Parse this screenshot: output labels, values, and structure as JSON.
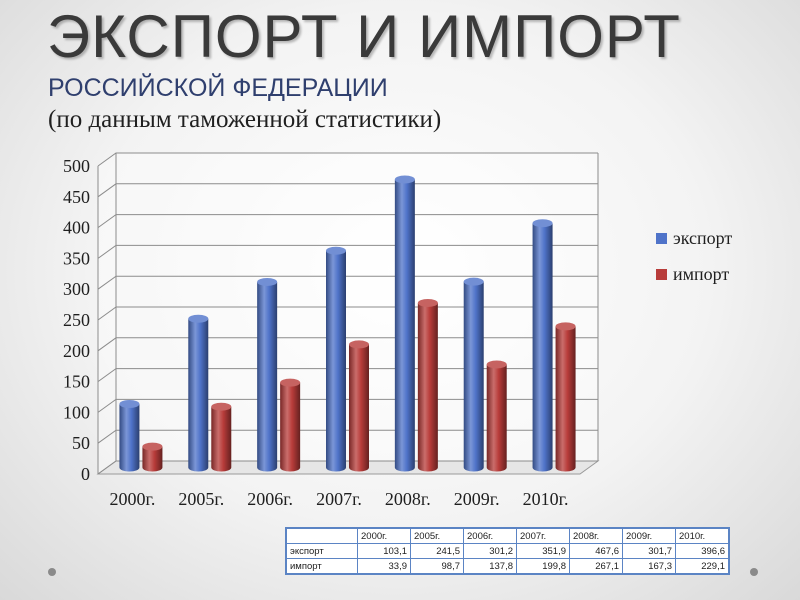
{
  "title": "ЭКСПОРТ И ИМПОРТ",
  "subtitle": "РОССИЙСКОЙ ФЕДЕРАЦИИ",
  "subtitle2": "(по данным таможенной статистики)",
  "chart_data": {
    "type": "bar",
    "categories": [
      "2000г.",
      "2005г.",
      "2006г.",
      "2007г.",
      "2008г.",
      "2009г.",
      "2010г."
    ],
    "series": [
      {
        "name": "экспорт",
        "values": [
          103.1,
          241.5,
          301.2,
          351.9,
          467.6,
          301.7,
          396.6
        ],
        "color": "#4f73c9"
      },
      {
        "name": "импорт",
        "values": [
          33.9,
          98.7,
          137.8,
          199.8,
          267.1,
          167.3,
          229.1
        ],
        "color": "#b83c3a"
      }
    ],
    "ylim": [
      0,
      500
    ],
    "yticks": [
      0,
      50,
      100,
      150,
      200,
      250,
      300,
      350,
      400,
      450,
      500
    ],
    "grid": true,
    "legend_position": "right",
    "three_d": true
  },
  "table": {
    "header": [
      "2000г.",
      "2005г.",
      "2006г.",
      "2007г.",
      "2008г.",
      "2009г.",
      "2010г."
    ],
    "rows": [
      {
        "label": "экспорт",
        "cells": [
          "103,1",
          "241,5",
          "301,2",
          "351,9",
          "467,6",
          "301,7",
          "396,6"
        ]
      },
      {
        "label": "импорт",
        "cells": [
          "33,9",
          "98,7",
          "137,8",
          "199,8",
          "267,1",
          "167,3",
          "229,1"
        ]
      }
    ]
  }
}
